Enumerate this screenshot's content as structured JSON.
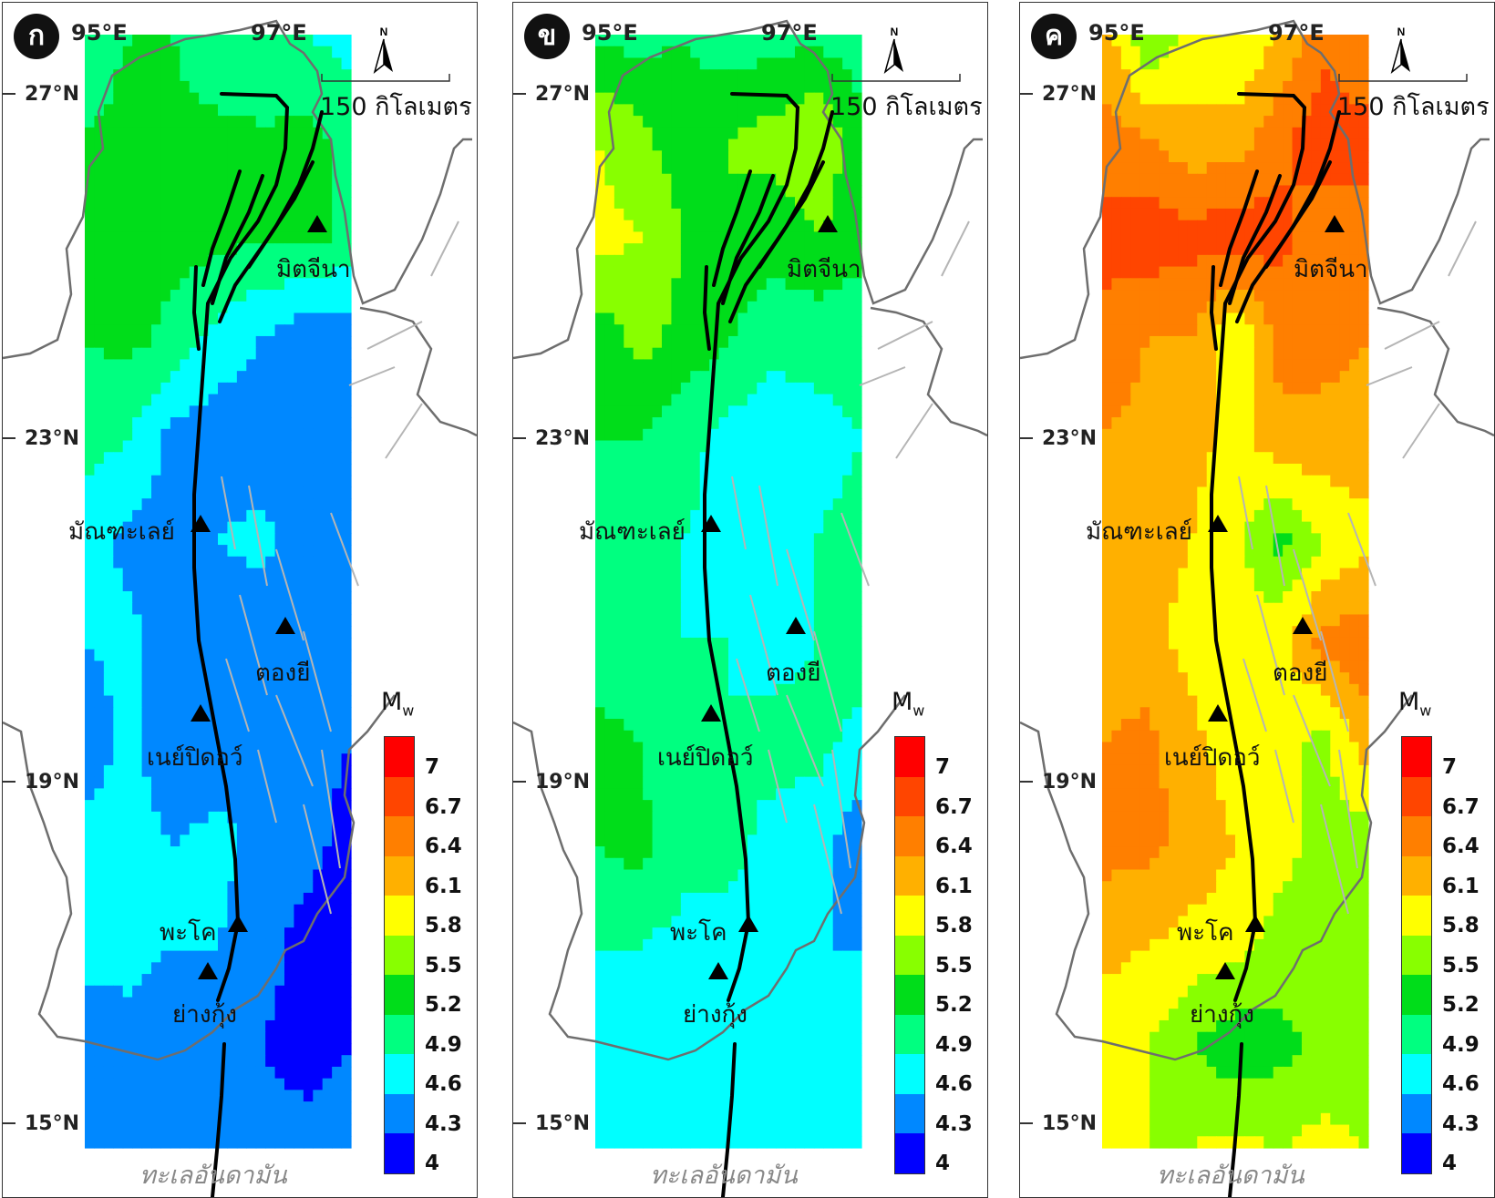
{
  "panels": [
    {
      "badge": "ก",
      "field": [
        [
          5.0,
          5.2,
          5.2,
          4.9,
          5.1,
          4.9,
          4.8
        ],
        [
          5.2,
          5.3,
          5.3,
          5.3,
          5.2,
          5.3,
          5.1
        ],
        [
          5.3,
          5.4,
          5.3,
          5.3,
          5.2,
          5.3,
          5.1
        ],
        [
          5.2,
          5.3,
          5.1,
          4.8,
          4.6,
          4.4,
          4.4
        ],
        [
          5.0,
          4.9,
          4.5,
          4.4,
          4.4,
          4.4,
          4.4
        ],
        [
          4.8,
          4.5,
          4.5,
          4.6,
          4.7,
          4.4,
          4.5
        ],
        [
          4.6,
          4.7,
          4.4,
          4.4,
          4.3,
          4.4,
          4.6
        ],
        [
          4.4,
          4.7,
          4.3,
          4.4,
          4.4,
          4.4,
          4.3
        ],
        [
          4.7,
          4.8,
          4.6,
          4.7,
          4.5,
          4.4,
          4.2
        ],
        [
          4.7,
          4.7,
          4.6,
          4.6,
          4.4,
          4.2,
          4.1
        ],
        [
          4.4,
          4.5,
          4.4,
          4.4,
          4.3,
          4.2,
          4.3
        ],
        [
          4.5,
          4.6,
          4.6,
          4.5,
          4.4,
          4.4,
          4.4
        ]
      ]
    },
    {
      "badge": "ข",
      "field": [
        [
          5.1,
          5.1,
          5.2,
          5.0,
          5.1,
          5.1,
          5.0
        ],
        [
          5.8,
          5.6,
          5.3,
          5.5,
          5.6,
          5.8,
          5.3
        ],
        [
          5.9,
          5.8,
          5.5,
          5.5,
          5.3,
          5.5,
          5.3
        ],
        [
          5.3,
          5.6,
          5.4,
          5.2,
          5.0,
          5.0,
          5.0
        ],
        [
          5.2,
          5.2,
          5.0,
          4.8,
          4.7,
          4.8,
          4.9
        ],
        [
          5.1,
          5.0,
          4.9,
          4.8,
          4.8,
          4.9,
          5.0
        ],
        [
          5.0,
          5.0,
          4.9,
          4.9,
          4.8,
          4.9,
          5.1
        ],
        [
          5.3,
          5.2,
          4.9,
          4.9,
          5.0,
          5.0,
          4.8
        ],
        [
          5.2,
          5.3,
          5.0,
          5.0,
          4.8,
          4.7,
          4.4
        ],
        [
          4.9,
          4.9,
          4.8,
          4.8,
          4.7,
          4.6,
          4.6
        ],
        [
          4.7,
          4.7,
          4.6,
          4.6,
          4.6,
          4.6,
          4.6
        ],
        [
          4.8,
          4.9,
          4.9,
          4.8,
          4.7,
          4.7,
          4.7
        ]
      ]
    },
    {
      "badge": "ค",
      "field": [
        [
          6.3,
          5.5,
          5.9,
          5.8,
          6.1,
          6.6,
          6.4
        ],
        [
          6.5,
          6.4,
          6.2,
          6.2,
          6.6,
          6.9,
          6.8
        ],
        [
          6.8,
          6.9,
          6.8,
          6.9,
          6.8,
          6.5,
          6.6
        ],
        [
          6.6,
          6.4,
          6.4,
          5.8,
          6.5,
          6.5,
          6.4
        ],
        [
          6.4,
          6.3,
          6.2,
          6.0,
          6.3,
          6.3,
          6.3
        ],
        [
          6.2,
          6.2,
          6.1,
          5.9,
          5.4,
          5.8,
          6.0
        ],
        [
          6.2,
          6.2,
          6.0,
          5.9,
          6.0,
          6.5,
          6.6
        ],
        [
          6.4,
          6.5,
          6.2,
          5.9,
          5.9,
          5.7,
          6.3
        ],
        [
          6.5,
          6.5,
          6.3,
          6.1,
          5.9,
          5.7,
          5.6
        ],
        [
          6.2,
          6.1,
          6.0,
          5.9,
          5.7,
          5.5,
          5.5
        ],
        [
          5.9,
          5.8,
          5.5,
          5.3,
          5.4,
          5.6,
          5.6
        ],
        [
          6.0,
          5.8,
          5.8,
          5.9,
          5.8,
          5.9,
          5.8
        ]
      ]
    }
  ],
  "lon_labels": [
    "95°E",
    "97°E"
  ],
  "lat_labels": [
    "27°N",
    "23°N",
    "19°N",
    "15°N"
  ],
  "cities": [
    {
      "name": "มิตจีนา"
    },
    {
      "name": "มัณฑะเลย์"
    },
    {
      "name": "ตองยี"
    },
    {
      "name": "เนย์ปิดอว์"
    },
    {
      "name": "พะโค"
    },
    {
      "name": "ย่างกุ้ง"
    }
  ],
  "scale_label": "150 กิโลเมตร",
  "north_label": "N",
  "sea_label": "ทะเลอันดามัน",
  "legend": {
    "title": "M",
    "title_sub": "w",
    "ticks": [
      "7",
      "6.7",
      "6.4",
      "6.1",
      "5.8",
      "5.5",
      "5.2",
      "4.9",
      "4.6",
      "4.3",
      "4"
    ],
    "colors": [
      "#ff0000",
      "#ff4500",
      "#ff7f00",
      "#ffb000",
      "#ffff00",
      "#88ff00",
      "#00dd1a",
      "#00ff80",
      "#00ffff",
      "#0088ff",
      "#0000ff"
    ]
  }
}
